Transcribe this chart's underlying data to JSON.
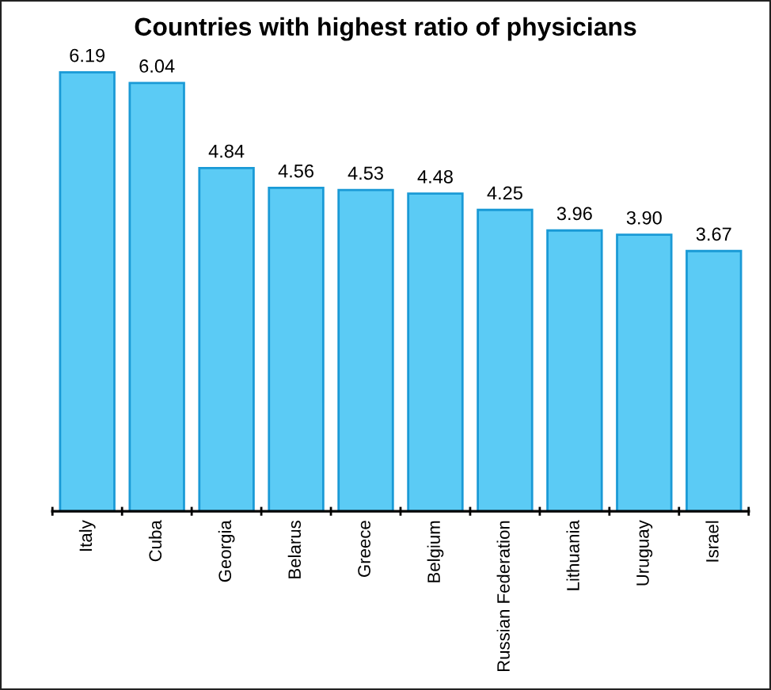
{
  "chart_data": {
    "type": "bar",
    "title": "Countries with highest ratio of physicians",
    "categories": [
      "Italy",
      "Cuba",
      "Georgia",
      "Belarus",
      "Greece",
      "Belgium",
      "Russian Federation",
      "Lithuania",
      "Uruguay",
      "Israel"
    ],
    "values": [
      6.19,
      6.04,
      4.84,
      4.56,
      4.53,
      4.48,
      4.25,
      3.96,
      3.9,
      3.67
    ],
    "value_labels": [
      "6.19",
      "6.04",
      "4.84",
      "4.56",
      "4.53",
      "4.48",
      "4.25",
      "3.96",
      "3.90",
      "3.67"
    ],
    "color": "#5bcbf5"
  }
}
